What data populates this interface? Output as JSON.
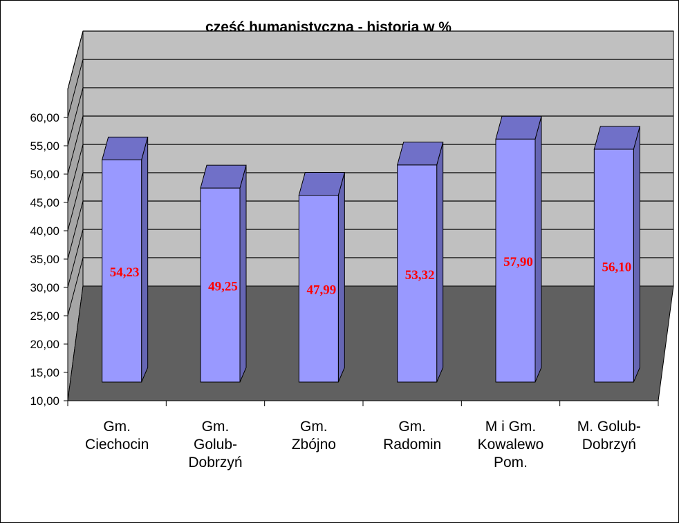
{
  "chart_data": {
    "type": "bar",
    "title": "część humanistyczna - historia w %",
    "categories": [
      [
        "Gm.",
        "Ciechocin"
      ],
      [
        "Gm.",
        "Golub-",
        "Dobrzyń"
      ],
      [
        "Gm.",
        "Zbójno"
      ],
      [
        "Gm.",
        "Radomin"
      ],
      [
        "M i Gm.",
        "Kowalewo",
        "Pom."
      ],
      [
        "M. Golub-",
        "Dobrzyń"
      ]
    ],
    "values": [
      54.23,
      49.25,
      47.99,
      53.32,
      57.9,
      56.1
    ],
    "data_labels": [
      "54,23",
      "49,25",
      "47,99",
      "53,32",
      "57,90",
      "56,10"
    ],
    "yticks": [
      "10,00",
      "15,00",
      "20,00",
      "25,00",
      "30,00",
      "35,00",
      "40,00",
      "45,00",
      "50,00",
      "55,00",
      "60,00"
    ],
    "ylim": [
      10,
      60
    ],
    "grid": true,
    "xlabel": "",
    "ylabel": "",
    "colors": {
      "bar_front": "#9999ff",
      "bar_top": "#7070c8",
      "bar_side": "#6666b4",
      "back_wall": "#c0c0c0",
      "left_wall": "#a6a6a6",
      "floor": "#606060",
      "data_label": "#ff0000"
    }
  }
}
